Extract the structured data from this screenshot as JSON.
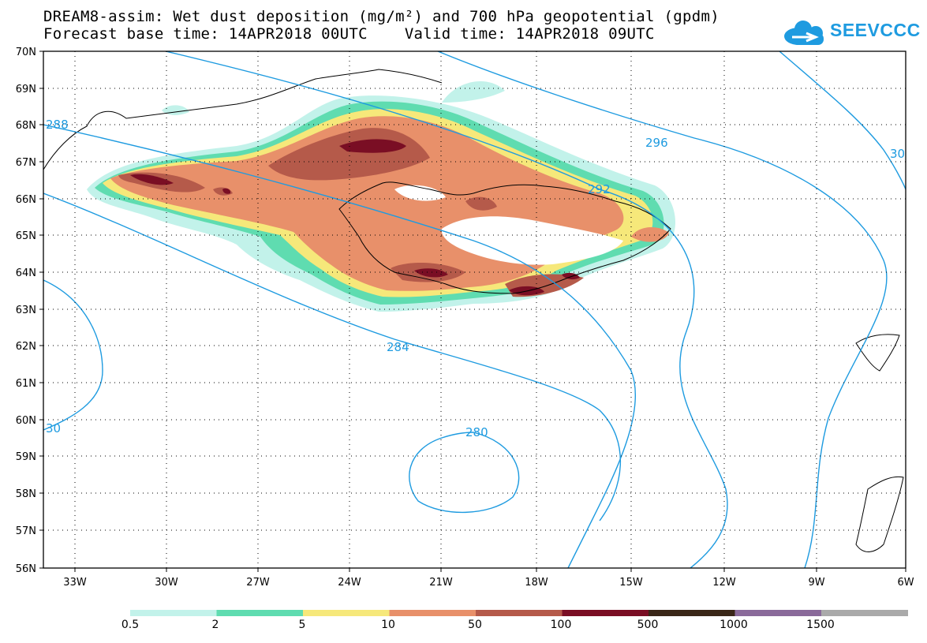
{
  "header": {
    "title_line1": "DREAM8-assim: Wet dust deposition (mg/m²) and 700 hPa geopotential (gpdm)",
    "title_line2": "Forecast base time: 14APR2018 00UTC    Valid time: 14APR2018 09UTC"
  },
  "logo": {
    "text": "SEEVCCC",
    "color": "#1e9be0"
  },
  "map": {
    "lat_labels": [
      "70N",
      "69N",
      "68N",
      "67N",
      "66N",
      "65N",
      "64N",
      "63N",
      "62N",
      "61N",
      "60N",
      "59N",
      "58N",
      "57N",
      "56N"
    ],
    "lon_labels": [
      "33W",
      "30W",
      "27W",
      "24W",
      "21W",
      "18W",
      "15W",
      "12W",
      "9W",
      "6W"
    ],
    "contour_color": "#1e9be0",
    "contour_labels": [
      "296",
      "292",
      "288",
      "284",
      "280",
      "30",
      "30"
    ],
    "region": "Iceland, North Atlantic"
  },
  "colorbar": {
    "labels": [
      "0.5",
      "2",
      "5",
      "10",
      "50",
      "100",
      "500",
      "1000",
      "1500"
    ],
    "colors": [
      "#c2f2ea",
      "#5fdcb0",
      "#f6e87a",
      "#e8906a",
      "#b55a4a",
      "#7a0e24",
      "#3a2718",
      "#8a6a9a",
      "#aaaaaa"
    ]
  }
}
